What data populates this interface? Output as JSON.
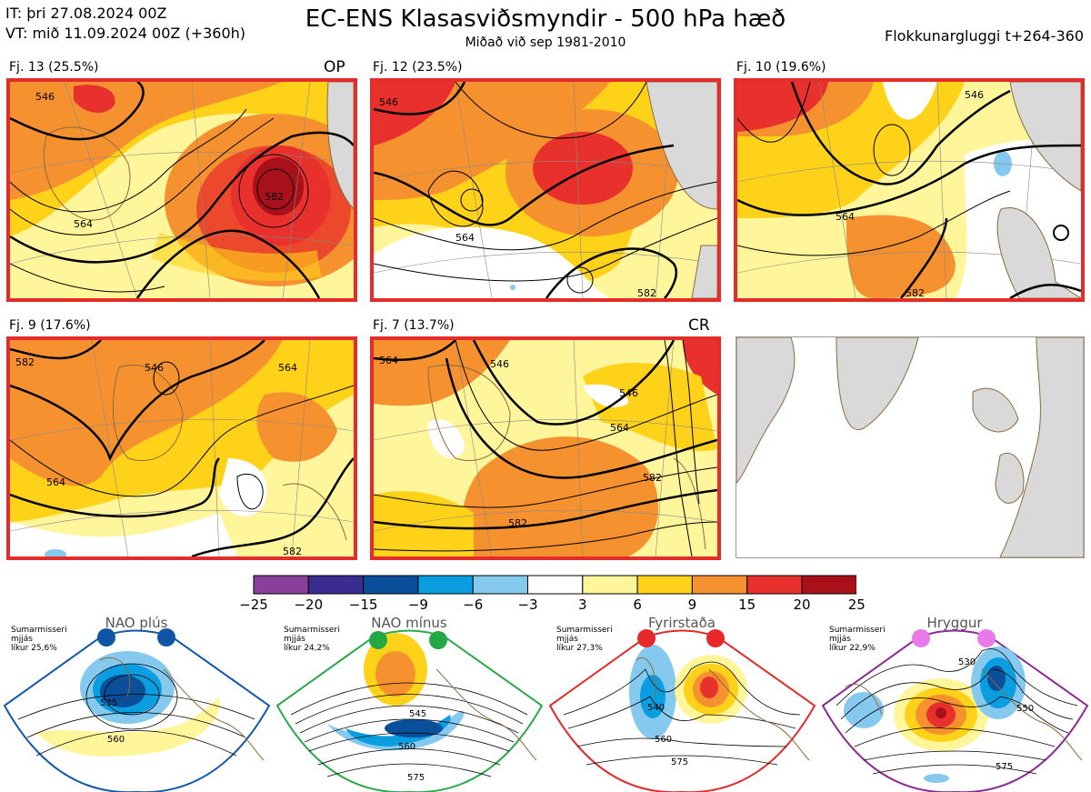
{
  "header": {
    "it_line": "IT: þri 27.08.2024 00Z",
    "vt_line": "VT: mið 11.09.2024 00Z  (+360h)",
    "title": "EC-ENS Klasasviðsmyndir - 500 hPa hæð",
    "subtitle": "Miðað við sep 1981-2010",
    "window": "Flokkunargluggi t+264-360"
  },
  "colors": {
    "panel_border": "#e62b2b",
    "land": "#d9d9d9",
    "coast": "#8b6a3a"
  },
  "clusters": [
    {
      "label": "Fj. 13 (25.5%)",
      "tag": "OP",
      "contours": [
        "546",
        "564",
        "582"
      ]
    },
    {
      "label": "Fj. 12 (23.5%)",
      "tag": "",
      "contours": [
        "546",
        "564",
        "582"
      ]
    },
    {
      "label": "Fj. 10 (19.6%)",
      "tag": "",
      "contours": [
        "546",
        "564",
        "582"
      ]
    },
    {
      "label": "Fj. 9 (17.6%)",
      "tag": "",
      "contours": [
        "582",
        "546",
        "564",
        "564",
        "582"
      ]
    },
    {
      "label": "Fj. 7 (13.7%)",
      "tag": "CR",
      "contours": [
        "564",
        "546",
        "546",
        "564",
        "582",
        "582"
      ]
    }
  ],
  "colorbar": {
    "ticks": [
      "−25",
      "−20",
      "−15",
      "−9",
      "−6",
      "−3",
      "3",
      "6",
      "9",
      "15",
      "20",
      "25"
    ],
    "colors": [
      "#8a3f9b",
      "#3b2d8f",
      "#0b4f9b",
      "#0a9ee0",
      "#86c9ee",
      "#ffffff",
      "#fff59b",
      "#ffd21a",
      "#f5922f",
      "#e8302c",
      "#a8101a"
    ]
  },
  "regimes": [
    {
      "name": "NAO plús",
      "season": "Sumarmisseri",
      "smooth": "mjjás",
      "likur": "líkur 25,6%",
      "frame": "#1458a8",
      "dot": "#0f55a6",
      "contours": [
        "535",
        "560"
      ]
    },
    {
      "name": "NAO mínus",
      "season": "Sumarmisseri",
      "smooth": "mjjás",
      "likur": "líkur 24,2%",
      "frame": "#2aa84a",
      "dot": "#22a845",
      "contours": [
        "545",
        "560",
        "575"
      ]
    },
    {
      "name": "Fyrirstaða",
      "season": "Sumarmisseri",
      "smooth": "mjjás",
      "likur": "líkur 27,3%",
      "frame": "#e02b2b",
      "dot": "#e8282b",
      "contours": [
        "540",
        "560",
        "575"
      ]
    },
    {
      "name": "Hryggur",
      "season": "Sumarmisseri",
      "smooth": "mjjás",
      "likur": "líkur 22,9%",
      "frame": "#8a2b94",
      "dot": "#e879e8",
      "contours": [
        "530",
        "550",
        "575"
      ]
    }
  ]
}
